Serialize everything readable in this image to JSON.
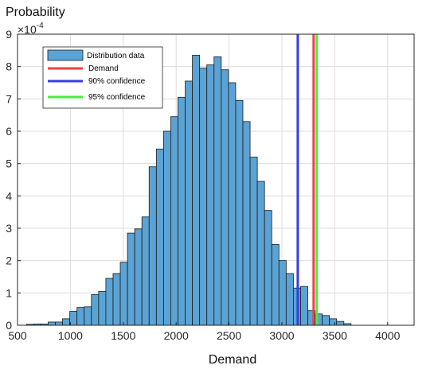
{
  "chart_data": {
    "type": "bar",
    "title": "",
    "xlabel": "Demand",
    "ylabel": "Probability",
    "y_exponent_label": "×10",
    "y_exponent_power": "-4",
    "xlim": [
      500,
      4250
    ],
    "ylim": [
      0,
      9
    ],
    "xticks": [
      500,
      1000,
      1500,
      2000,
      2500,
      3000,
      3500,
      4000
    ],
    "yticks": [
      0,
      1,
      2,
      3,
      4,
      5,
      6,
      7,
      8,
      9
    ],
    "grid": true,
    "legend_position": "top-left",
    "bin_width": 68.2,
    "bin_start": 585,
    "values": [
      0.03,
      0.04,
      0.04,
      0.1,
      0.1,
      0.2,
      0.43,
      0.55,
      0.57,
      0.95,
      1.05,
      1.45,
      1.6,
      1.95,
      2.85,
      2.98,
      3.35,
      4.9,
      5.45,
      6.0,
      6.45,
      7.05,
      7.55,
      8.35,
      7.95,
      8.05,
      8.3,
      7.9,
      7.5,
      6.95,
      6.3,
      5.2,
      4.45,
      3.55,
      2.5,
      2.0,
      1.6,
      1.15,
      1.2,
      0.45,
      0.35,
      0.3,
      0.2,
      0.12,
      0.05
    ],
    "series": [
      {
        "name": "Distribution data",
        "color": "#5ba3d5"
      },
      {
        "name": "Demand",
        "color": "#f04040",
        "x": 3300
      },
      {
        "name": "90% confidence",
        "color": "#3a3ae6",
        "x": 3150
      },
      {
        "name": "95% confidence",
        "color": "#44ee44",
        "x": 3330
      }
    ]
  }
}
